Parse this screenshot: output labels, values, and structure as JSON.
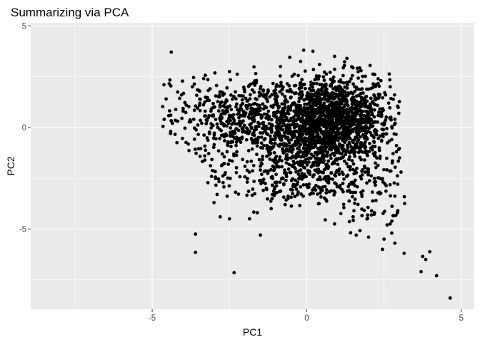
{
  "chart_data": {
    "type": "scatter",
    "title": "Summarizing via PCA",
    "xlabel": "PC1",
    "ylabel": "PC2",
    "xlim": [
      -8.93,
      5.42
    ],
    "ylim": [
      -8.95,
      5.15
    ],
    "x_ticks": [
      -5,
      0,
      5
    ],
    "x_tick_labels": [
      "-5",
      "0",
      "5"
    ],
    "y_ticks": [
      -5,
      0,
      5
    ],
    "y_tick_labels": [
      "-5",
      "0",
      "5"
    ],
    "grid": true,
    "legend": "none",
    "colors": {
      "panel": "#ebebeb",
      "grid": "#ffffff",
      "point": "#000000"
    },
    "points": [
      [
        4.64,
        -8.4
      ],
      [
        4.2,
        -7.3
      ],
      [
        3.7,
        -7.1
      ],
      [
        -2.35,
        -7.15
      ],
      [
        -3.6,
        -6.15
      ],
      [
        -3.6,
        -5.25
      ],
      [
        3.98,
        -6.12
      ],
      [
        3.75,
        -6.35
      ],
      [
        3.85,
        -6.5
      ],
      [
        3.15,
        -6.2
      ],
      [
        2.45,
        -6.0
      ],
      [
        2.85,
        -5.7
      ],
      [
        2.5,
        -5.5
      ],
      [
        2.0,
        -5.4
      ],
      [
        1.6,
        -5.3
      ],
      [
        -1.5,
        -5.3
      ],
      [
        -2.8,
        -4.4
      ],
      [
        -2.5,
        -4.5
      ],
      [
        -3.0,
        -3.7
      ],
      [
        -2.9,
        -3.3
      ],
      [
        -1.85,
        -4.5
      ],
      [
        -1.6,
        -4.2
      ],
      [
        2.75,
        -5.2
      ],
      [
        2.6,
        -4.8
      ],
      [
        1.95,
        -4.5
      ],
      [
        1.5,
        -4.4
      ],
      [
        0.9,
        -4.75
      ],
      [
        0.6,
        -4.55
      ],
      [
        -4.65,
        0.05
      ],
      [
        -4.4,
        -0.2
      ],
      [
        -4.25,
        0.35
      ],
      [
        -4.55,
        1.4
      ],
      [
        -4.45,
        2.15
      ],
      [
        -4.05,
        1.6
      ],
      [
        -3.7,
        2.0
      ],
      [
        -3.2,
        2.35
      ],
      [
        -0.85,
        3.0
      ],
      [
        -0.55,
        3.45
      ],
      [
        -0.2,
        3.25
      ],
      [
        -0.1,
        3.8
      ],
      [
        0.2,
        3.75
      ],
      [
        0.9,
        3.5
      ],
      [
        1.3,
        3.4
      ],
      [
        2.2,
        2.6
      ],
      [
        2.4,
        2.3
      ],
      [
        2.7,
        2.0
      ],
      [
        2.65,
        1.2
      ],
      [
        2.85,
        0.4
      ],
      [
        2.75,
        -0.6
      ],
      [
        3.0,
        -1.5
      ],
      [
        2.9,
        -1.2
      ],
      [
        -0.7,
        -3.8
      ],
      [
        0.4,
        -3.75
      ],
      [
        1.2,
        -3.95
      ],
      [
        -1.15,
        -4.0
      ],
      [
        -4.2,
        -0.75
      ],
      [
        -3.5,
        -1.05
      ],
      [
        -3.3,
        -1.4
      ],
      [
        -2.5,
        2.75
      ],
      [
        -1.65,
        2.65
      ],
      [
        2.05,
        3.05
      ],
      [
        2.55,
        1.6
      ],
      [
        3.05,
        -2.2
      ],
      [
        -3.9,
        1.1
      ]
    ],
    "dense_regions": [
      {
        "cx": 0.95,
        "cy": 0.6,
        "sx": 0.85,
        "sy": 1.0,
        "n": 900
      },
      {
        "cx": 0.3,
        "cy": -0.7,
        "sx": 1.15,
        "sy": 1.0,
        "n": 650
      },
      {
        "cx": -1.0,
        "cy": 0.5,
        "sx": 1.4,
        "sy": 1.0,
        "n": 550
      },
      {
        "cx": -2.8,
        "cy": 0.5,
        "sx": 0.8,
        "sy": 0.9,
        "n": 160
      },
      {
        "cx": -1.2,
        "cy": -2.6,
        "sx": 1.0,
        "sy": 0.7,
        "n": 120
      },
      {
        "cx": 1.0,
        "cy": -2.4,
        "sx": 1.1,
        "sy": 0.6,
        "n": 140
      },
      {
        "cx": 2.1,
        "cy": -3.7,
        "sx": 0.5,
        "sy": 0.7,
        "n": 50
      }
    ]
  }
}
